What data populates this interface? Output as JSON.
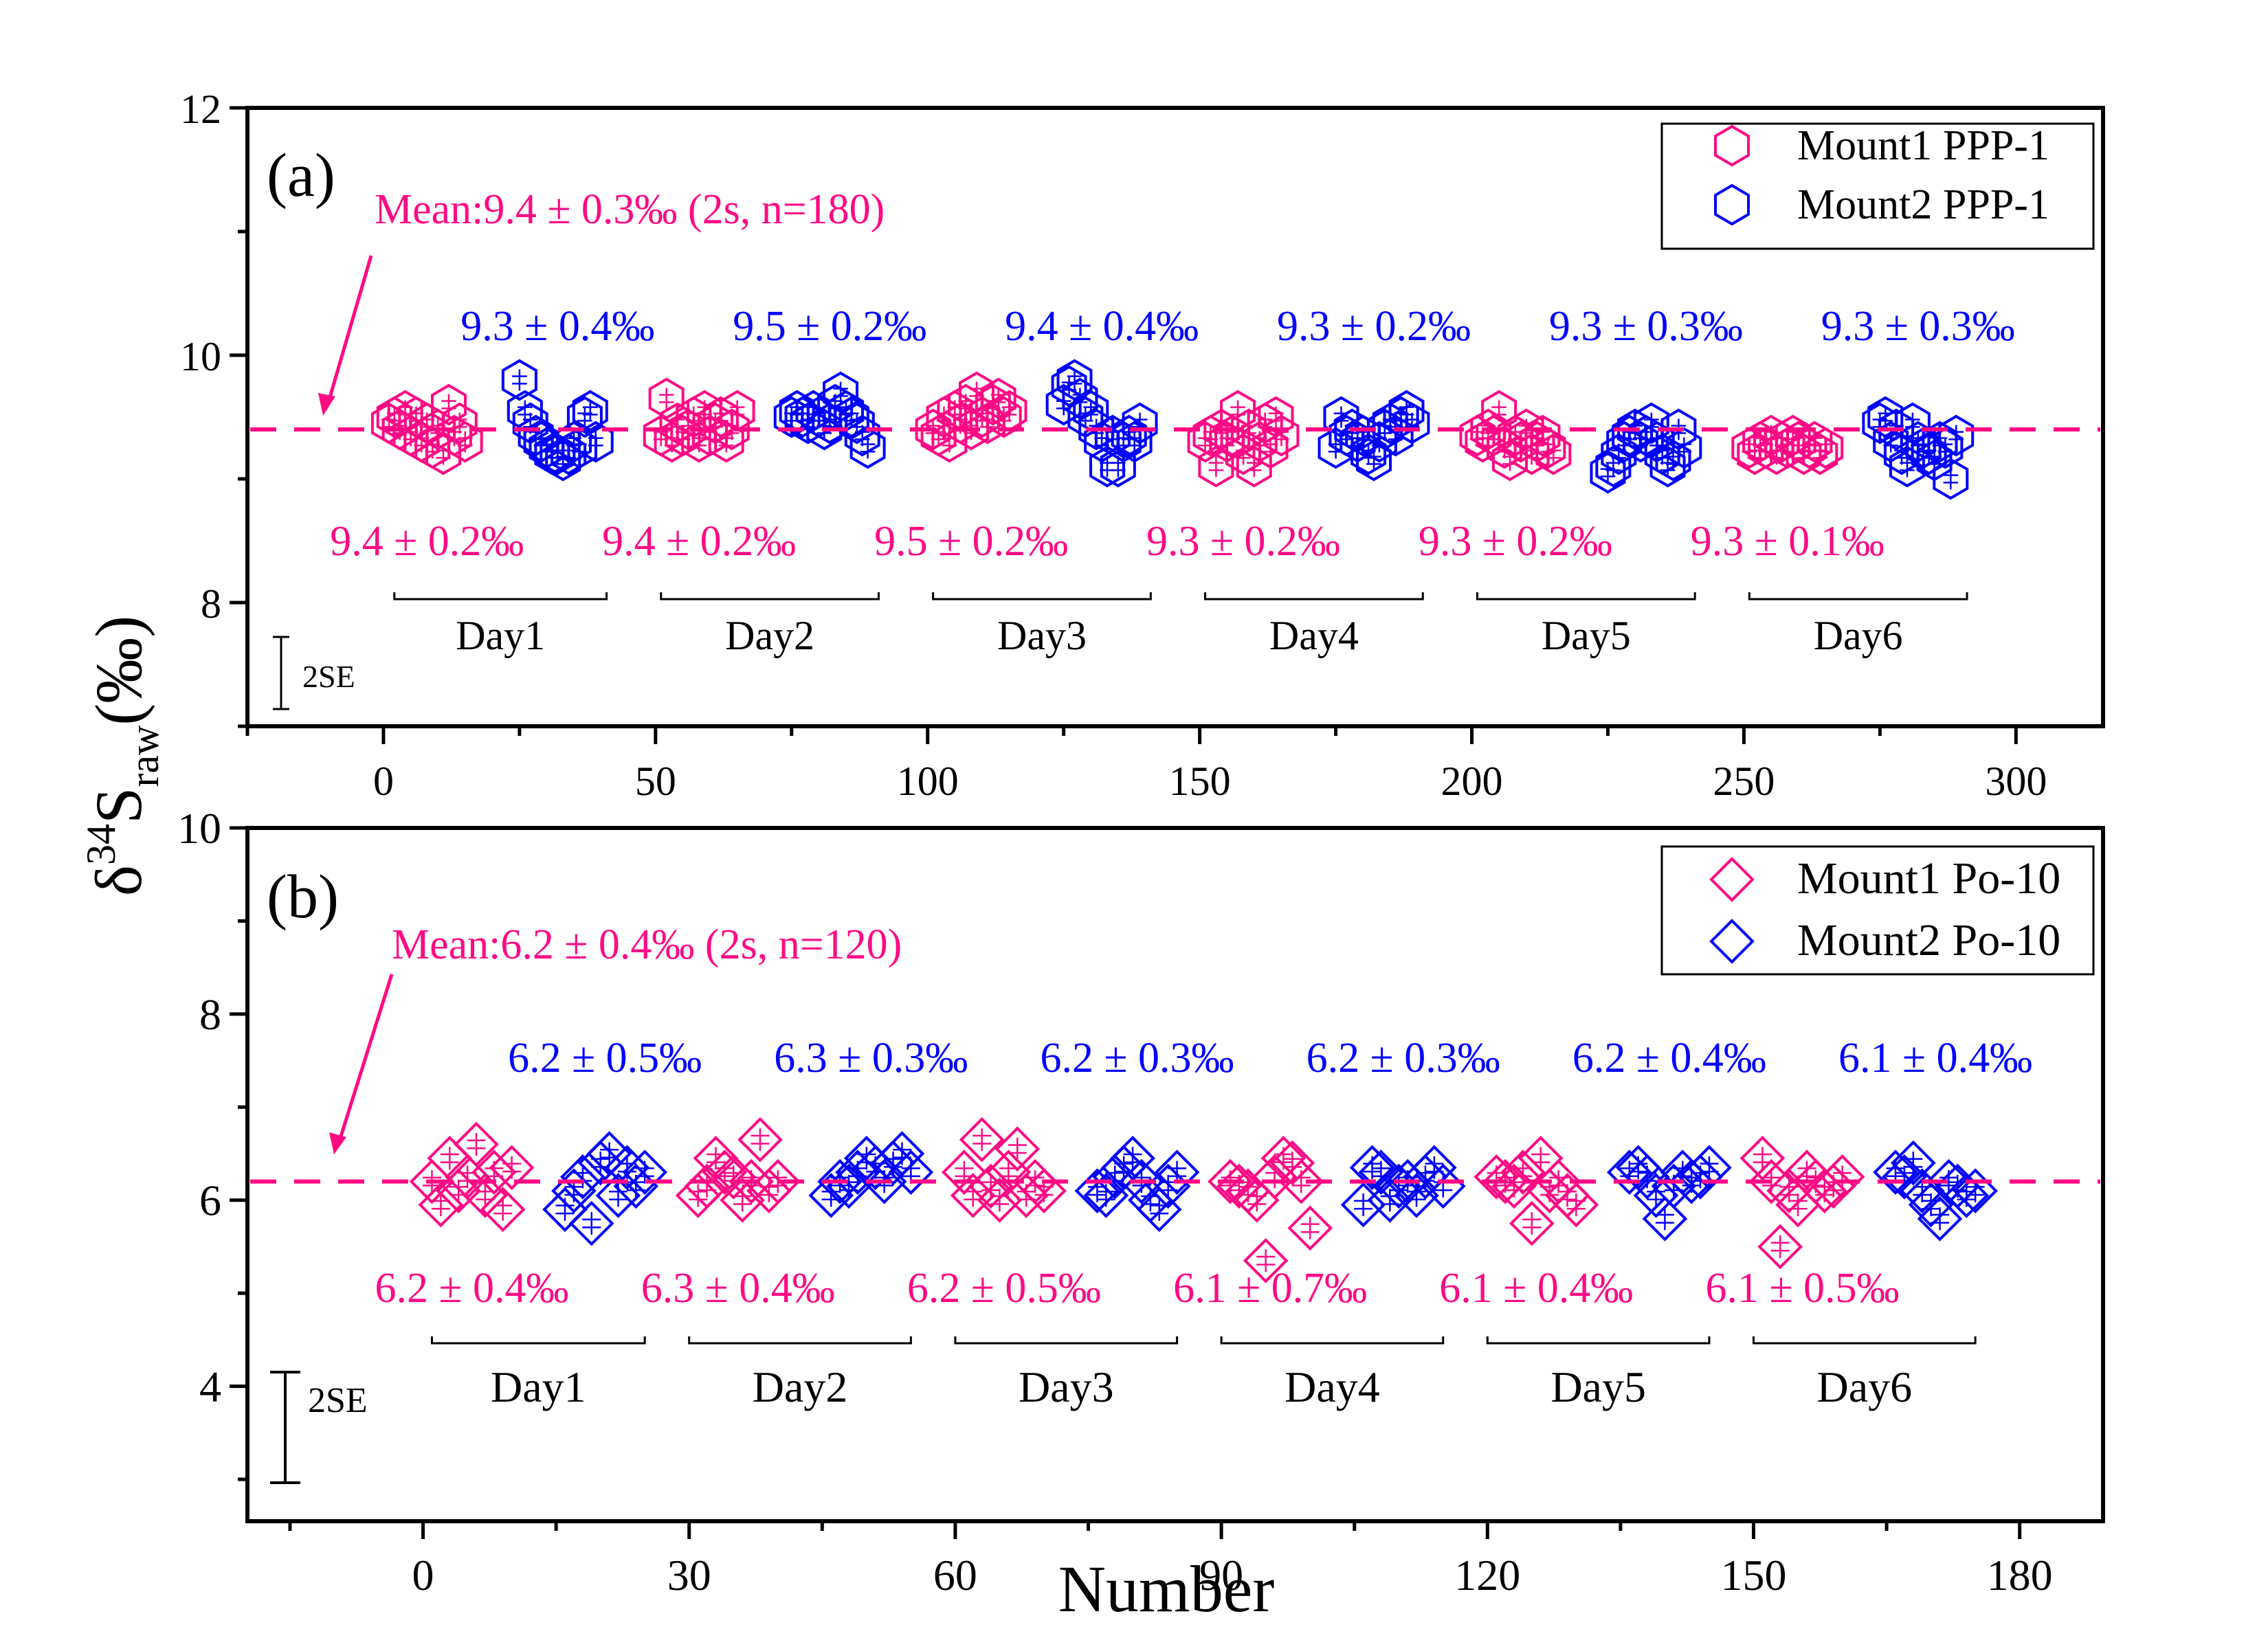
{
  "chart_data": [
    {
      "panel": "(a)",
      "type": "scatter",
      "xlabel": "",
      "ylabel": "δ34Sraw(‰)",
      "xlim": [
        -25,
        316
      ],
      "ylim": [
        7,
        12
      ],
      "xticks": [
        0,
        50,
        100,
        150,
        200,
        250,
        300
      ],
      "xtick_labels": [
        "0",
        "50",
        "100",
        "150",
        "200",
        "250",
        "300"
      ],
      "x_minor_step": 25,
      "yticks": [
        8,
        10,
        12
      ],
      "ytick_labels": [
        "8",
        "10",
        "12"
      ],
      "y_minor_step": 1,
      "mean": {
        "value": 9.4,
        "label": "Mean:9.4 ± 0.3‰ (2s, n=180)",
        "color": "#ff0a85"
      },
      "marker": "hexagon",
      "legend": {
        "position": "top-right",
        "entries": [
          {
            "label": "Mount1 PPP-1",
            "color": "#ff0a85"
          },
          {
            "label": "Mount2 PPP-1",
            "color": "#0000ff"
          }
        ]
      },
      "scale_bar": {
        "label": "2SE"
      },
      "days": [
        {
          "label": "Day1",
          "range": [
            2,
            41
          ],
          "mount1_label": "9.4 ± 0.2‰",
          "mount2_label": "9.3 ± 0.4‰"
        },
        {
          "label": "Day2",
          "range": [
            51,
            91
          ],
          "mount1_label": "9.4 ± 0.2‰",
          "mount2_label": "9.5 ± 0.2‰"
        },
        {
          "label": "Day3",
          "range": [
            101,
            141
          ],
          "mount1_label": "9.5 ± 0.2‰",
          "mount2_label": "9.4 ± 0.4‰"
        },
        {
          "label": "Day4",
          "range": [
            151,
            191
          ],
          "mount1_label": "9.3 ± 0.2‰",
          "mount2_label": "9.3 ± 0.2‰"
        },
        {
          "label": "Day5",
          "range": [
            201,
            241
          ],
          "mount1_label": "9.3 ± 0.2‰",
          "mount2_label": "9.3 ± 0.3‰"
        },
        {
          "label": "Day6",
          "range": [
            251,
            291
          ],
          "mount1_label": "9.3 ± 0.1‰",
          "mount2_label": "9.3 ± 0.3‰"
        }
      ],
      "series": [
        {
          "name": "Mount1 PPP-1",
          "color": "#ff0a85",
          "x": [
            1,
            2,
            3,
            4,
            5,
            6,
            7,
            8,
            9,
            10,
            11,
            12,
            13,
            14,
            15,
            51,
            52,
            53,
            54,
            55,
            56,
            57,
            58,
            59,
            60,
            61,
            62,
            63,
            64,
            65,
            101,
            102,
            103,
            104,
            105,
            106,
            107,
            108,
            109,
            110,
            111,
            112,
            113,
            114,
            115,
            151,
            152,
            153,
            154,
            155,
            156,
            157,
            158,
            159,
            160,
            161,
            162,
            163,
            164,
            165,
            201,
            202,
            203,
            204,
            205,
            206,
            207,
            208,
            209,
            210,
            211,
            212,
            213,
            214,
            215,
            251,
            252,
            253,
            254,
            255,
            256,
            257,
            258,
            259,
            260,
            261,
            262,
            263,
            264,
            265
          ],
          "y": [
            9.45,
            9.5,
            9.4,
            9.55,
            9.35,
            9.5,
            9.3,
            9.45,
            9.25,
            9.4,
            9.2,
            9.6,
            9.35,
            9.45,
            9.3,
            9.35,
            9.65,
            9.3,
            9.45,
            9.35,
            9.4,
            9.5,
            9.3,
            9.55,
            9.35,
            9.45,
            9.5,
            9.3,
            9.4,
            9.55,
            9.4,
            9.35,
            9.5,
            9.3,
            9.55,
            9.45,
            9.6,
            9.4,
            9.7,
            9.5,
            9.45,
            9.6,
            9.65,
            9.5,
            9.55,
            9.3,
            9.35,
            9.1,
            9.4,
            9.3,
            9.35,
            9.55,
            9.2,
            9.4,
            9.1,
            9.3,
            9.45,
            9.25,
            9.5,
            9.35,
            9.35,
            9.3,
            9.4,
            9.35,
            9.55,
            9.25,
            9.15,
            9.35,
            9.3,
            9.4,
            9.2,
            9.3,
            9.35,
            9.25,
            9.2,
            9.25,
            9.2,
            9.3,
            9.25,
            9.35,
            9.2,
            9.3,
            9.25,
            9.35,
            9.3,
            9.2,
            9.25,
            9.3,
            9.2,
            9.25
          ]
        },
        {
          "name": "Mount2 PPP-1",
          "color": "#0000ff",
          "x": [
            25,
            26,
            27,
            28,
            29,
            30,
            31,
            32,
            33,
            34,
            35,
            36,
            37,
            38,
            39,
            75,
            76,
            77,
            78,
            79,
            80,
            81,
            82,
            83,
            84,
            85,
            86,
            87,
            88,
            89,
            125,
            126,
            127,
            128,
            129,
            130,
            131,
            132,
            133,
            134,
            135,
            136,
            137,
            138,
            139,
            175,
            176,
            177,
            178,
            179,
            180,
            181,
            182,
            183,
            184,
            185,
            186,
            187,
            188,
            189,
            225,
            226,
            227,
            228,
            229,
            230,
            231,
            232,
            233,
            234,
            235,
            236,
            237,
            238,
            239,
            275,
            276,
            277,
            278,
            279,
            280,
            281,
            282,
            283,
            284,
            285,
            286,
            287,
            288,
            289
          ],
          "y": [
            9.8,
            9.55,
            9.45,
            9.35,
            9.3,
            9.25,
            9.2,
            9.2,
            9.15,
            9.2,
            9.3,
            9.25,
            9.5,
            9.55,
            9.3,
            9.5,
            9.55,
            9.5,
            9.45,
            9.55,
            9.5,
            9.4,
            9.45,
            9.6,
            9.7,
            9.55,
            9.5,
            9.45,
            9.35,
            9.25,
            9.6,
            9.75,
            9.8,
            9.65,
            9.5,
            9.55,
            9.4,
            9.3,
            9.1,
            9.35,
            9.1,
            9.3,
            9.35,
            9.3,
            9.45,
            9.25,
            9.5,
            9.35,
            9.4,
            9.3,
            9.35,
            9.2,
            9.15,
            9.3,
            9.4,
            9.45,
            9.35,
            9.5,
            9.55,
            9.45,
            9.05,
            9.1,
            9.2,
            9.3,
            9.35,
            9.4,
            9.3,
            9.35,
            9.45,
            9.3,
            9.2,
            9.1,
            9.15,
            9.4,
            9.25,
            9.45,
            9.5,
            9.3,
            9.4,
            9.2,
            9.1,
            9.45,
            9.3,
            9.25,
            9.2,
            9.15,
            9.3,
            9.25,
            9.0,
            9.35
          ]
        }
      ]
    },
    {
      "panel": "(b)",
      "type": "scatter",
      "xlabel": "Number",
      "ylabel": "δ34Sraw(‰)",
      "xlim": [
        -19.8,
        189.4
      ],
      "ylim": [
        2.55,
        10
      ],
      "xticks": [
        0,
        30,
        60,
        90,
        120,
        150,
        180
      ],
      "xtick_labels": [
        "0",
        "30",
        "60",
        "90",
        "120",
        "150",
        "180"
      ],
      "x_minor_step": 15,
      "yticks": [
        4,
        6,
        8,
        10
      ],
      "ytick_labels": [
        "4",
        "6",
        "8",
        "10"
      ],
      "y_minor_step": 1,
      "mean": {
        "value": 6.2,
        "label": "Mean:6.2 ± 0.4‰ (2s, n=120)",
        "color": "#ff0a85"
      },
      "marker": "diamond",
      "legend": {
        "position": "top-right",
        "entries": [
          {
            "label": "Mount1 Po-10",
            "color": "#ff0a85"
          },
          {
            "label": "Mount2 Po-10",
            "color": "#0000ff"
          }
        ]
      },
      "scale_bar": {
        "label": "2SE"
      },
      "days": [
        {
          "label": "Day1",
          "range": [
            1,
            25
          ],
          "mount1_label": "6.2 ± 0.4‰",
          "mount2_label": "6.2 ± 0.5‰"
        },
        {
          "label": "Day2",
          "range": [
            30,
            55
          ],
          "mount1_label": "6.3 ± 0.4‰",
          "mount2_label": "6.3 ± 0.3‰"
        },
        {
          "label": "Day3",
          "range": [
            60,
            85
          ],
          "mount1_label": "6.2 ± 0.5‰",
          "mount2_label": "6.2 ± 0.3‰"
        },
        {
          "label": "Day4",
          "range": [
            90,
            115
          ],
          "mount1_label": "6.1 ± 0.7‰",
          "mount2_label": "6.2 ± 0.3‰"
        },
        {
          "label": "Day5",
          "range": [
            120,
            145
          ],
          "mount1_label": "6.1 ± 0.4‰",
          "mount2_label": "6.2 ± 0.4‰"
        },
        {
          "label": "Day6",
          "range": [
            150,
            175
          ],
          "mount1_label": "6.1 ± 0.5‰",
          "mount2_label": "6.1 ± 0.4‰"
        }
      ],
      "series": [
        {
          "name": "Mount1 Po-10",
          "color": "#ff0a85",
          "x": [
            1,
            2,
            3,
            4,
            5,
            6,
            7,
            8,
            9,
            10,
            31,
            32,
            33,
            34,
            35,
            36,
            37,
            38,
            39,
            40,
            61,
            62,
            63,
            64,
            65,
            66,
            67,
            68,
            69,
            70,
            91,
            92,
            93,
            94,
            95,
            96,
            97,
            98,
            99,
            100,
            121,
            122,
            123,
            124,
            125,
            126,
            127,
            128,
            129,
            130,
            151,
            152,
            153,
            154,
            155,
            156,
            157,
            158,
            159,
            160
          ],
          "y": [
            6.2,
            5.95,
            6.45,
            6.1,
            6.25,
            6.6,
            6.05,
            6.3,
            5.9,
            6.35,
            6.05,
            6.15,
            6.45,
            6.3,
            6.25,
            6.0,
            6.2,
            6.65,
            6.1,
            6.2,
            6.3,
            6.05,
            6.65,
            6.15,
            6.0,
            6.3,
            6.55,
            6.05,
            6.2,
            6.1,
            6.2,
            6.15,
            6.1,
            6.0,
            5.35,
            6.25,
            6.45,
            6.4,
            6.2,
            5.7,
            6.25,
            6.2,
            6.15,
            6.3,
            5.75,
            6.45,
            6.1,
            6.2,
            6.05,
            5.95,
            6.45,
            6.2,
            5.5,
            6.1,
            5.95,
            6.3,
            6.2,
            6.1,
            6.15,
            6.25
          ]
        },
        {
          "name": "Mount2 Po-10",
          "color": "#0000ff",
          "x": [
            16,
            17,
            18,
            19,
            20,
            21,
            22,
            23,
            24,
            25,
            46,
            47,
            48,
            49,
            50,
            51,
            52,
            53,
            54,
            55,
            76,
            77,
            78,
            79,
            80,
            81,
            82,
            83,
            84,
            85,
            106,
            107,
            108,
            109,
            110,
            111,
            112,
            113,
            114,
            115,
            136,
            137,
            138,
            139,
            140,
            141,
            142,
            143,
            144,
            145,
            166,
            167,
            168,
            169,
            170,
            171,
            172,
            173,
            174,
            175
          ],
          "y": [
            5.9,
            6.1,
            6.25,
            5.75,
            6.4,
            6.5,
            6.05,
            6.35,
            6.15,
            6.3,
            6.05,
            6.2,
            6.15,
            6.3,
            6.45,
            6.35,
            6.2,
            6.4,
            6.5,
            6.3,
            6.1,
            6.05,
            6.25,
            6.35,
            6.45,
            6.2,
            6.0,
            5.9,
            6.15,
            6.3,
            5.95,
            6.35,
            6.3,
            6.0,
            6.15,
            6.2,
            6.05,
            6.25,
            6.35,
            6.15,
            6.3,
            6.35,
            6.25,
            6.05,
            5.8,
            6.15,
            6.3,
            6.2,
            6.25,
            6.35,
            6.3,
            6.25,
            6.4,
            6.1,
            5.95,
            5.8,
            6.2,
            6.15,
            6.05,
            6.1
          ]
        }
      ]
    }
  ],
  "shared_ylabel": {
    "delta": "δ",
    "superscript": "34",
    "element": "S",
    "subscript": "raw",
    "unit": "(‰)"
  },
  "shared_xlabel": "Number"
}
